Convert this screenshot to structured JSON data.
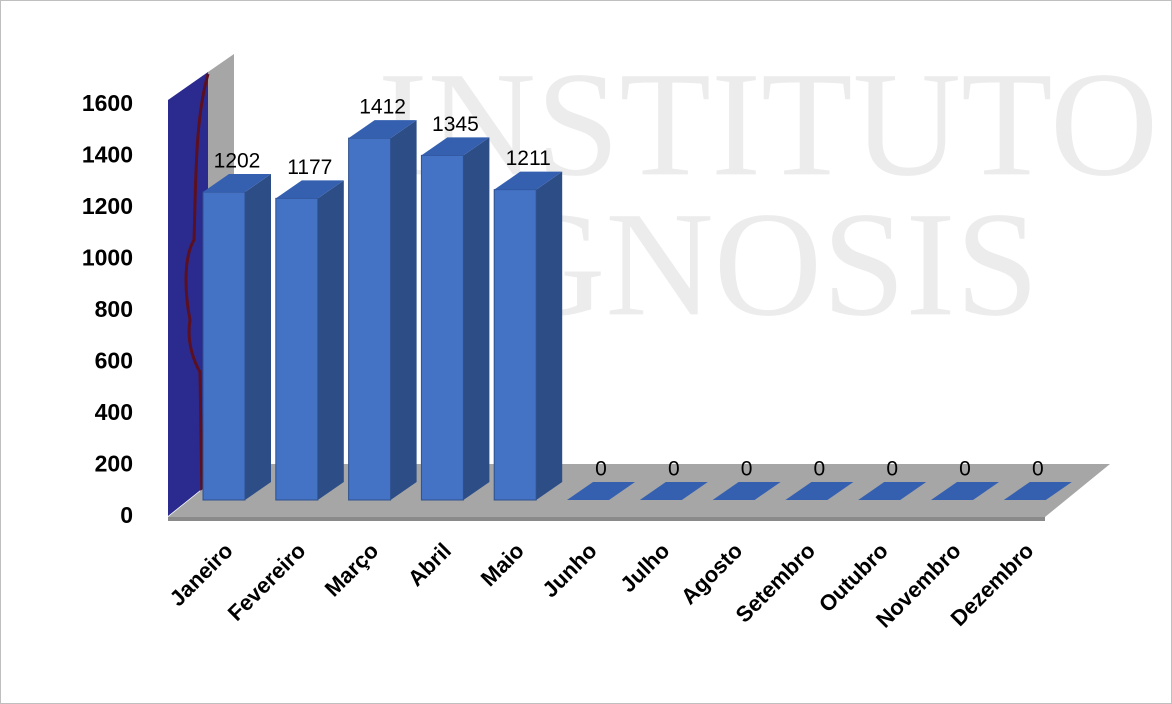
{
  "chart_data": {
    "type": "bar3d",
    "watermark": [
      "INSTITUTO",
      "GNOSIS"
    ],
    "categories": [
      "Janeiro",
      "Fevereiro",
      "Março",
      "Abril",
      "Maio",
      "Junho",
      "Julho",
      "Agosto",
      "Setembro",
      "Outubro",
      "Novembro",
      "Dezembro"
    ],
    "values": [
      1202,
      1177,
      1412,
      1345,
      1211,
      0,
      0,
      0,
      0,
      0,
      0,
      0
    ],
    "color": "#4472c4",
    "ylim": [
      0,
      1600
    ],
    "yticks": [
      0,
      200,
      400,
      600,
      800,
      1000,
      1200,
      1400,
      1600
    ]
  }
}
